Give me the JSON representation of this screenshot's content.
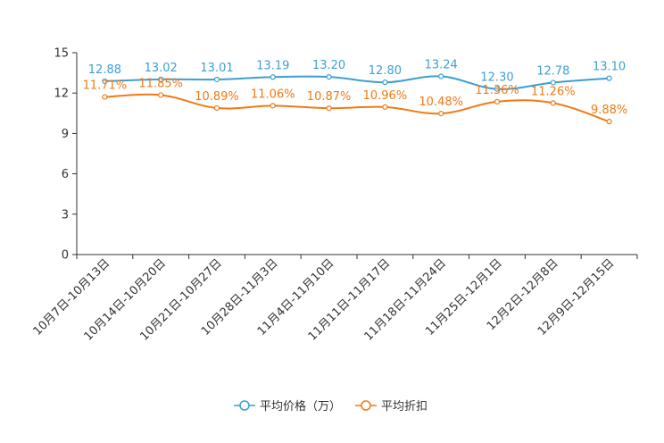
{
  "chart_data": {
    "type": "line",
    "categories": [
      "10月7日-10月13日",
      "10月14日-10月20日",
      "10月21日-10月27日",
      "10月28日-11月3日",
      "11月4日-11月10日",
      "11月11日-11月17日",
      "11月18日-11月24日",
      "11月25日-12月1日",
      "12月2日-12月8日",
      "12月9日-12月15日"
    ],
    "series": [
      {
        "name": "平均价格（万）",
        "color": "#3d9fd1",
        "values": [
          12.88,
          13.02,
          13.01,
          13.19,
          13.2,
          12.8,
          13.24,
          12.3,
          12.78,
          13.1
        ],
        "labels": [
          "12.88",
          "13.02",
          "13.01",
          "13.19",
          "13.20",
          "12.80",
          "13.24",
          "12.30",
          "12.78",
          "13.10"
        ]
      },
      {
        "name": "平均折扣",
        "color": "#f07a14",
        "values": [
          11.71,
          11.85,
          10.89,
          11.06,
          10.87,
          10.96,
          10.48,
          11.36,
          11.26,
          9.88
        ],
        "labels": [
          "11.71%",
          "11.85%",
          "10.89%",
          "11.06%",
          "10.87%",
          "10.96%",
          "10.48%",
          "11.36%",
          "11.26%",
          "9.88%"
        ]
      }
    ],
    "yticks": [
      "0",
      "3",
      "6",
      "9",
      "12",
      "15"
    ],
    "ylim": [
      0,
      15
    ],
    "legend_position": "bottom-center"
  }
}
